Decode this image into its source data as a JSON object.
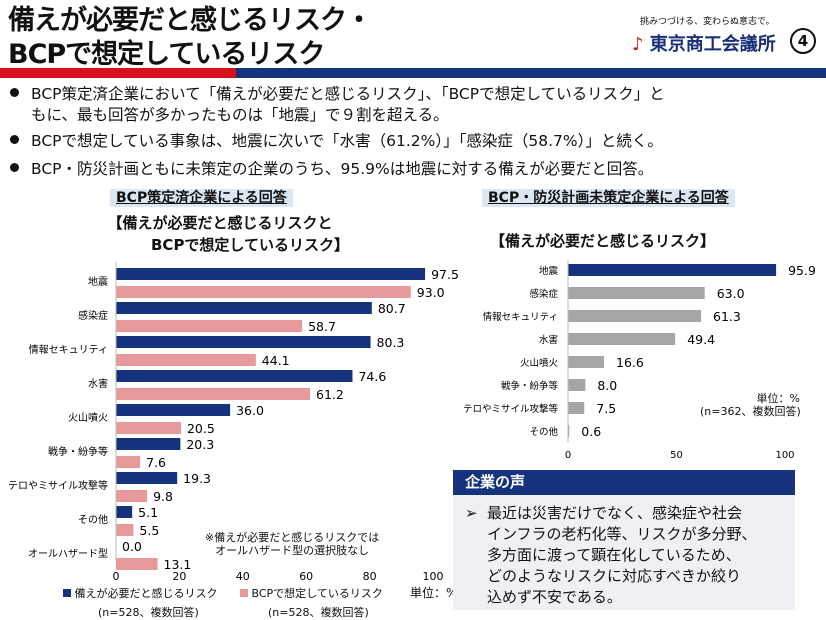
{
  "header": {
    "title_line1": "備えが必要だと感じるリスク・",
    "title_line2": "BCPで想定しているリスク",
    "tagline": "挑みつづける、変わらぬ意志で。",
    "logo": "東京商工会議所",
    "page_number": "④"
  },
  "bullets": [
    "BCP策定済企業において「備えが必要だと感じるリスク」、「BCPで想定しているリスク」と",
    "もに、最も回答が多かったものは「地震」で９割を超える。",
    "BCPで想定している事象は、地震に次いで「水害（61.2%）」「感染症（58.7%）」と続く。",
    "BCP・防災計画ともに未策定の企業のうち、95.9%は地震に対する備えが必要だと回答。"
  ],
  "colors": {
    "navy": "#15337d",
    "pink": "#e8999b",
    "gray": "#a6a6a6",
    "red": "#d8111c"
  },
  "chart_data": [
    {
      "type": "bar",
      "orientation": "horizontal",
      "section_label": "BCP策定済企業による回答",
      "title_line1": "【備えが必要だと感じるリスクと",
      "title_line2": "BCPで想定しているリスク】",
      "categories": [
        "地震",
        "感染症",
        "情報セキュリティ",
        "水害",
        "火山噴火",
        "戦争・紛争等",
        "テロやミサイル攻撃等",
        "その他",
        "オールハザード型"
      ],
      "series": [
        {
          "name": "備えが必要だと感じるリスク",
          "values": [
            97.5,
            80.7,
            80.3,
            74.6,
            36.0,
            20.3,
            19.3,
            5.1,
            0.0
          ],
          "labels": [
            "97.5",
            "80.7",
            "80.3",
            "74.6",
            "36.0",
            "20.3",
            "19.3",
            "5.1",
            "0.0"
          ]
        },
        {
          "name": "BCPで想定しているリスク",
          "values": [
            93.0,
            58.7,
            44.1,
            61.2,
            20.5,
            7.6,
            9.8,
            5.5,
            13.1
          ],
          "labels": [
            "93.0",
            "58.7",
            "44.1",
            "61.2",
            "20.5",
            "7.6",
            "9.8",
            "5.5",
            "13.1"
          ]
        }
      ],
      "xlim": [
        0,
        100
      ],
      "xticks": [
        "0",
        "20",
        "40",
        "60",
        "80",
        "100"
      ],
      "unit": "単位：%",
      "legend_n": [
        "(n=528、複数回答)",
        "(n=528、複数回答)"
      ],
      "note_line1": "※備えが必要だと感じるリスクでは",
      "note_line2": "オールハザード型の選択肢なし"
    },
    {
      "type": "bar",
      "orientation": "horizontal",
      "section_label": "BCP・防災計画未策定企業による回答",
      "title": "【備えが必要だと感じるリスク】",
      "categories": [
        "地震",
        "感染症",
        "情報セキュリティ",
        "水害",
        "火山噴火",
        "戦争・紛争等",
        "テロやミサイル攻撃等",
        "その他"
      ],
      "values": [
        95.9,
        63.0,
        61.3,
        49.4,
        16.6,
        8.0,
        7.5,
        0.6
      ],
      "labels": [
        "95.9",
        "63.0",
        "61.3",
        "49.4",
        "16.6",
        "8.0",
        "7.5",
        "0.6"
      ],
      "xlim": [
        0,
        100
      ],
      "xticks": [
        "0",
        "50",
        "100"
      ],
      "unit": "単位：%",
      "n_note": "(n=362、複数回答)"
    }
  ],
  "voice": {
    "title": "企業の声",
    "arrow": "➢",
    "lines": [
      "最近は災害だけでなく、感染症や社会",
      "インフラの老朽化等、リスクが多分野、",
      "多方面に渡って顕在化しているため、",
      "どのようなリスクに対応すべきか絞り",
      "込めず不安である。"
    ]
  }
}
